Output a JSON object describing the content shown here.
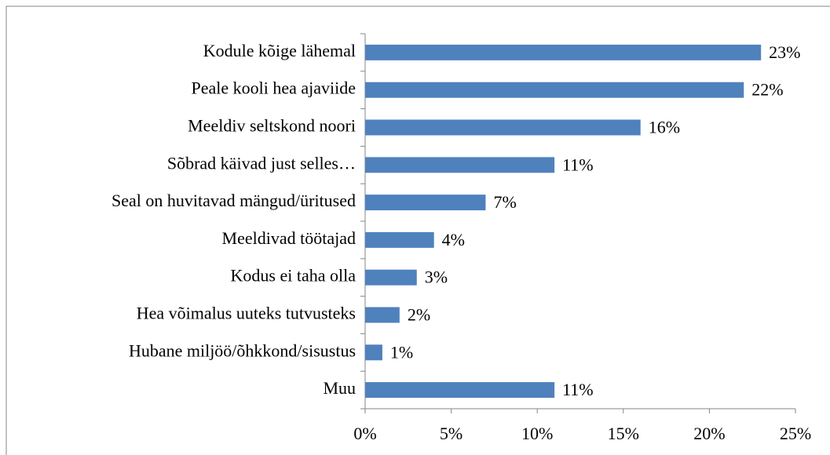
{
  "chart_data": {
    "type": "hbar",
    "categories": [
      "Kodule kõige lähemal",
      "Peale kooli hea ajaviide",
      "Meeldiv seltskond noori",
      "Sõbrad käivad just selles…",
      "Seal on huvitavad mängud/üritused",
      "Meeldivad töötajad",
      "Kodus ei taha olla",
      "Hea võimalus uuteks tutvusteks",
      "Hubane miljöö/õhkkond/sisustus",
      "Muu"
    ],
    "values": [
      23,
      22,
      16,
      11,
      7,
      4,
      3,
      2,
      1,
      11
    ],
    "value_labels": [
      "23%",
      "22%",
      "16%",
      "11%",
      "7%",
      "4%",
      "3%",
      "2%",
      "1%",
      "11%"
    ],
    "color": "#4f81bd",
    "xlim": [
      0,
      25
    ],
    "xticks": [
      {
        "value": 0,
        "label": "0%"
      },
      {
        "value": 5,
        "label": "5%"
      },
      {
        "value": 10,
        "label": "10%"
      },
      {
        "value": 15,
        "label": "15%"
      },
      {
        "value": 20,
        "label": "20%"
      },
      {
        "value": 25,
        "label": "25%"
      }
    ]
  }
}
